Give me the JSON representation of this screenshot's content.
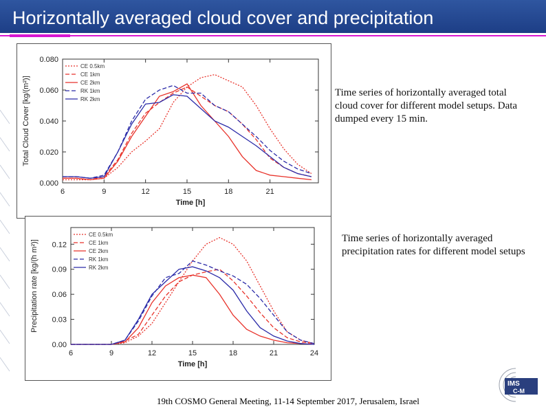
{
  "slide": {
    "title": "Horizontally averaged cloud cover and precipitation",
    "footer": "19th COSMO General Meeting, 11-14 September 2017, Jerusalem, Israel",
    "captions": [
      "Time series of horizontally averaged total cloud cover for different model setups. Data dumped every 15 min.",
      "Time series of horizontally averaged precipitation rates for different model setups"
    ],
    "logo_text": [
      "IMS",
      "C-M"
    ],
    "colors": {
      "title_bg": "#2a4f9a",
      "rule": "#d817d2",
      "red": "#e8322a",
      "blue": "#2a2aa8"
    }
  },
  "chart_data": [
    {
      "type": "line",
      "xlabel": "Time [h]",
      "ylabel": "Total Cloud Cover [kg/(m²)]",
      "xlim": [
        6,
        24.5
      ],
      "ylim": [
        0,
        0.08
      ],
      "xticks": [
        "6",
        "9",
        "12",
        "15",
        "18",
        "21"
      ],
      "yticks": [
        "0.000",
        "0.020",
        "0.040",
        "0.060",
        "0.080"
      ],
      "legend": "top-left",
      "grid": false,
      "x": [
        6,
        7,
        8,
        9,
        10,
        11,
        12,
        13,
        14,
        15,
        16,
        17,
        18,
        19,
        20,
        21,
        22,
        23,
        24
      ],
      "series": [
        {
          "name": "CE 0.5km",
          "color": "#e8322a",
          "dash": "dot",
          "values": [
            0.002,
            0.002,
            0.002,
            0.003,
            0.01,
            0.02,
            0.027,
            0.035,
            0.052,
            0.062,
            0.068,
            0.07,
            0.066,
            0.062,
            0.05,
            0.035,
            0.022,
            0.012,
            0.006
          ]
        },
        {
          "name": "CE 1km",
          "color": "#e8322a",
          "dash": "dash",
          "values": [
            0.003,
            0.003,
            0.002,
            0.004,
            0.015,
            0.032,
            0.045,
            0.052,
            0.058,
            0.062,
            0.056,
            0.05,
            0.046,
            0.038,
            0.028,
            0.016,
            0.01,
            0.006,
            0.004
          ]
        },
        {
          "name": "CE 2km",
          "color": "#e8322a",
          "dash": "solid",
          "values": [
            0.003,
            0.003,
            0.002,
            0.003,
            0.014,
            0.03,
            0.043,
            0.056,
            0.059,
            0.064,
            0.05,
            0.04,
            0.03,
            0.017,
            0.008,
            0.005,
            0.004,
            0.003,
            0.002
          ]
        },
        {
          "name": "RK 1km",
          "color": "#2a2aa8",
          "dash": "dash",
          "values": [
            0.004,
            0.004,
            0.003,
            0.005,
            0.02,
            0.04,
            0.054,
            0.06,
            0.063,
            0.058,
            0.058,
            0.05,
            0.046,
            0.038,
            0.03,
            0.021,
            0.014,
            0.009,
            0.006
          ]
        },
        {
          "name": "RK 2km",
          "color": "#2a2aa8",
          "dash": "solid",
          "values": [
            0.004,
            0.004,
            0.003,
            0.004,
            0.02,
            0.038,
            0.051,
            0.052,
            0.057,
            0.056,
            0.048,
            0.04,
            0.036,
            0.03,
            0.024,
            0.017,
            0.01,
            0.006,
            0.004
          ]
        }
      ]
    },
    {
      "type": "line",
      "xlabel": "Time [h]",
      "ylabel": "Precipitation rate [kg/(h m²)]",
      "xlim": [
        6,
        24
      ],
      "ylim": [
        0,
        0.14
      ],
      "xticks": [
        "6",
        "9",
        "12",
        "15",
        "18",
        "21",
        "24"
      ],
      "yticks": [
        "0.00",
        "0.03",
        "0.06",
        "0.09",
        "0.12"
      ],
      "legend": "top-left",
      "grid": false,
      "x": [
        6,
        7,
        8,
        9,
        10,
        11,
        12,
        13,
        14,
        15,
        16,
        17,
        18,
        19,
        20,
        21,
        22,
        23,
        24
      ],
      "series": [
        {
          "name": "CE 0.5km",
          "color": "#e8322a",
          "dash": "dot",
          "values": [
            0,
            0,
            0,
            0,
            0.002,
            0.01,
            0.025,
            0.05,
            0.075,
            0.1,
            0.12,
            0.128,
            0.12,
            0.1,
            0.07,
            0.04,
            0.015,
            0.005,
            0.001
          ]
        },
        {
          "name": "CE 1km",
          "color": "#e8322a",
          "dash": "dash",
          "values": [
            0,
            0,
            0,
            0,
            0.004,
            0.012,
            0.035,
            0.058,
            0.075,
            0.083,
            0.087,
            0.09,
            0.076,
            0.058,
            0.038,
            0.02,
            0.008,
            0.003,
            0.001
          ]
        },
        {
          "name": "CE 2km",
          "color": "#e8322a",
          "dash": "solid",
          "values": [
            0,
            0,
            0,
            0,
            0.003,
            0.02,
            0.05,
            0.07,
            0.08,
            0.083,
            0.08,
            0.06,
            0.035,
            0.018,
            0.01,
            0.005,
            0.002,
            0.001,
            0
          ]
        },
        {
          "name": "RK 1km",
          "color": "#2a2aa8",
          "dash": "dash",
          "values": [
            0,
            0,
            0,
            0,
            0.005,
            0.028,
            0.058,
            0.08,
            0.085,
            0.1,
            0.095,
            0.088,
            0.082,
            0.072,
            0.055,
            0.035,
            0.015,
            0.005,
            0.001
          ]
        },
        {
          "name": "RK 2km",
          "color": "#2a2aa8",
          "dash": "solid",
          "values": [
            0,
            0,
            0,
            0,
            0.005,
            0.03,
            0.06,
            0.075,
            0.09,
            0.093,
            0.088,
            0.08,
            0.065,
            0.04,
            0.02,
            0.01,
            0.004,
            0.001,
            0
          ]
        }
      ]
    }
  ]
}
